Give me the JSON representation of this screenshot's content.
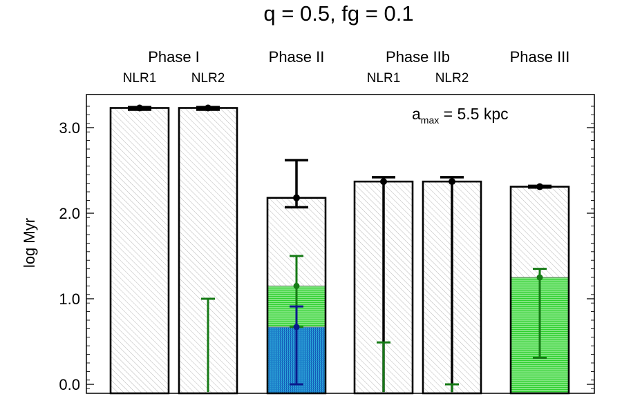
{
  "chart_data": {
    "type": "bar",
    "title": "q = 0.5, fg = 0.1",
    "ylabel": "log Myr",
    "xlabel": "",
    "ylim": [
      -0.09,
      3.4
    ],
    "y_ticks": [
      {
        "value": 0.0,
        "label": "0.0"
      },
      {
        "value": 1.0,
        "label": "1.0"
      },
      {
        "value": 2.0,
        "label": "2.0"
      },
      {
        "value": 3.0,
        "label": "3.0"
      }
    ],
    "annotation": {
      "main": "a",
      "sub": "max",
      "rest": " = 5.5 kpc"
    },
    "group_labels": [
      {
        "label": "Phase I",
        "bars": [
          0,
          1
        ]
      },
      {
        "label": "Phase II",
        "bars": [
          2
        ]
      },
      {
        "label": "Phase IIb",
        "bars": [
          3,
          4
        ]
      },
      {
        "label": "Phase III",
        "bars": [
          5
        ]
      }
    ],
    "bars": [
      {
        "sublabel": "NLR1",
        "total": 3.23,
        "fills": [],
        "errorbars": [
          {
            "color": "black",
            "center": 3.23,
            "low": 3.21,
            "high": 3.24
          }
        ]
      },
      {
        "sublabel": "NLR2",
        "total": 3.23,
        "fills": [],
        "errorbars": [
          {
            "color": "black",
            "center": 3.23,
            "low": 3.21,
            "high": 3.24
          },
          {
            "color": "green",
            "center": null,
            "low": -0.09,
            "high": 1.0
          }
        ]
      },
      {
        "sublabel": "",
        "total": 2.18,
        "fills": [
          {
            "color": "green",
            "value": 1.15
          },
          {
            "color": "blue",
            "value": 0.67
          }
        ],
        "errorbars": [
          {
            "color": "black",
            "center": 2.18,
            "low": 2.07,
            "high": 2.62
          },
          {
            "color": "green",
            "center": 1.15,
            "low": 0.67,
            "high": 1.5
          },
          {
            "color": "navy",
            "center": 0.67,
            "low": 0.0,
            "high": 0.91
          }
        ]
      },
      {
        "sublabel": "NLR1",
        "total": 2.37,
        "fills": [],
        "errorbars": [
          {
            "color": "black",
            "center": 2.37,
            "low": -0.09,
            "high": 2.42
          },
          {
            "color": "green",
            "center": null,
            "low": -0.09,
            "high": 0.49
          }
        ]
      },
      {
        "sublabel": "NLR2",
        "total": 2.37,
        "fills": [],
        "errorbars": [
          {
            "color": "black",
            "center": 2.37,
            "low": -0.09,
            "high": 2.42
          },
          {
            "color": "green",
            "center": null,
            "low": -0.09,
            "high": 0.0
          }
        ]
      },
      {
        "sublabel": "",
        "total": 2.31,
        "fills": [
          {
            "color": "green",
            "value": 1.25
          }
        ],
        "errorbars": [
          {
            "color": "black",
            "center": 2.31,
            "low": 2.3,
            "high": 2.32
          },
          {
            "color": "green",
            "center": 1.25,
            "low": 0.31,
            "high": 1.35
          }
        ]
      }
    ],
    "colors": {
      "black": "#000000",
      "green": "#157a15",
      "navy": "#0a1a8c",
      "blue": "#1e6fd8",
      "green_fill": "#33dd33",
      "hatch": "#b8b8b8"
    }
  }
}
